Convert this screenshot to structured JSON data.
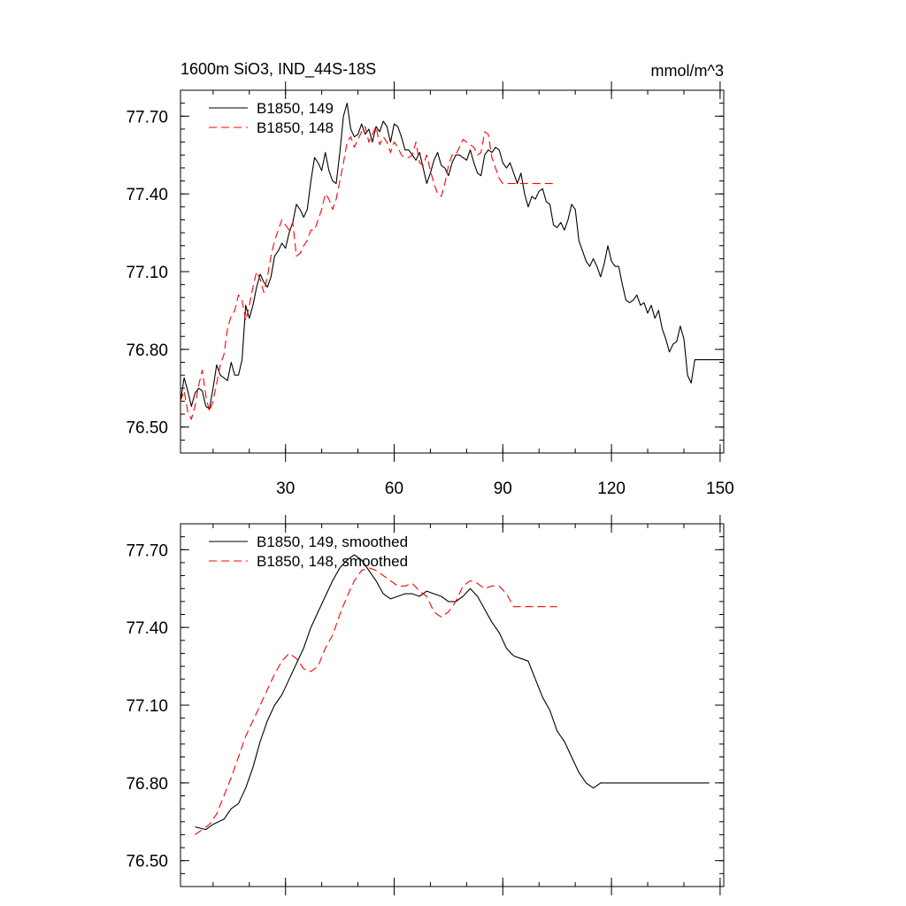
{
  "figure": {
    "title_left": "1600m SiO3, IND_44S-18S",
    "title_right": "mmol/m^3"
  },
  "chart_data": [
    {
      "type": "line",
      "xlim": [
        1,
        151
      ],
      "ylim": [
        76.4,
        77.8
      ],
      "yticks": [
        76.5,
        76.8,
        77.1,
        77.4,
        77.7
      ],
      "ytick_labels": [
        "76.50",
        "76.80",
        "77.10",
        "77.40",
        "77.70"
      ],
      "xticks": [
        30,
        60,
        90,
        120,
        150
      ],
      "xtick_labels": [
        "30",
        "60",
        "90",
        "120",
        "150"
      ],
      "grid": false,
      "legend_position": "top-left",
      "series": [
        {
          "name": "B1850, 149",
          "color": "#000000",
          "dash": "solid",
          "x": [
            1,
            2,
            3,
            4,
            5,
            6,
            7,
            8,
            9,
            10,
            11,
            12,
            13,
            14,
            15,
            16,
            17,
            18,
            19,
            20,
            21,
            22,
            23,
            24,
            25,
            26,
            27,
            28,
            29,
            30,
            31,
            32,
            33,
            34,
            35,
            36,
            37,
            38,
            39,
            40,
            41,
            42,
            43,
            44,
            45,
            46,
            47,
            48,
            49,
            50,
            51,
            52,
            53,
            54,
            55,
            56,
            57,
            58,
            59,
            60,
            61,
            62,
            63,
            64,
            65,
            66,
            67,
            68,
            69,
            70,
            71,
            72,
            73,
            74,
            75,
            76,
            77,
            78,
            79,
            80,
            81,
            82,
            83,
            84,
            85,
            86,
            87,
            88,
            89,
            90,
            91,
            92,
            93,
            94,
            95,
            96,
            97,
            98,
            99,
            100,
            101,
            102,
            103,
            104,
            105,
            106,
            107,
            108,
            109,
            110,
            111,
            112,
            113,
            114,
            115,
            116,
            117,
            118,
            119,
            120,
            121,
            122,
            123,
            124,
            125,
            126,
            127,
            128,
            129,
            130,
            131,
            132,
            133,
            134,
            135,
            136,
            137,
            138,
            139,
            140,
            141,
            142,
            143,
            144,
            145,
            146,
            147,
            148,
            149,
            150,
            151
          ],
          "values": [
            76.6,
            76.69,
            76.64,
            76.58,
            76.63,
            76.65,
            76.64,
            76.58,
            76.57,
            76.65,
            76.74,
            76.7,
            76.69,
            76.68,
            76.75,
            76.7,
            76.7,
            76.76,
            76.97,
            76.92,
            76.97,
            77.04,
            77.09,
            77.06,
            77.04,
            77.08,
            77.16,
            77.18,
            77.21,
            77.19,
            77.25,
            77.29,
            77.36,
            77.34,
            77.31,
            77.34,
            77.45,
            77.54,
            77.52,
            77.49,
            77.56,
            77.49,
            77.45,
            77.44,
            77.56,
            77.7,
            77.75,
            77.65,
            77.62,
            77.63,
            77.67,
            77.63,
            77.65,
            77.6,
            77.66,
            77.64,
            77.68,
            77.66,
            77.6,
            77.67,
            77.66,
            77.62,
            77.57,
            77.57,
            77.55,
            77.53,
            77.56,
            77.5,
            77.44,
            77.48,
            77.53,
            77.56,
            77.51,
            77.5,
            77.47,
            77.52,
            77.55,
            77.55,
            77.54,
            77.53,
            77.57,
            77.52,
            77.48,
            77.47,
            77.55,
            77.57,
            77.56,
            77.58,
            77.57,
            77.52,
            77.5,
            77.52,
            77.48,
            77.44,
            77.48,
            77.4,
            77.35,
            77.39,
            77.38,
            77.41,
            77.42,
            77.37,
            77.36,
            77.28,
            77.27,
            77.29,
            77.26,
            77.3,
            77.36,
            77.34,
            77.22,
            77.18,
            77.14,
            77.12,
            77.15,
            77.12,
            77.08,
            77.13,
            77.2,
            77.14,
            77.12,
            77.12,
            77.05,
            76.99,
            76.98,
            76.99,
            77.01,
            76.97,
            76.98,
            76.94,
            76.97,
            76.92,
            76.95,
            76.88,
            76.84,
            76.79,
            76.82,
            76.83,
            76.89,
            76.84,
            76.7,
            76.67,
            76.76,
            76.76,
            76.76,
            76.76,
            76.76,
            76.76,
            76.76,
            76.76,
            76.76
          ]
        },
        {
          "name": "B1850, 148",
          "color": "#ff0000",
          "dash": "dashed",
          "x": [
            1,
            2,
            3,
            4,
            5,
            6,
            7,
            8,
            9,
            10,
            11,
            12,
            13,
            14,
            15,
            16,
            17,
            18,
            19,
            20,
            21,
            22,
            23,
            24,
            25,
            26,
            27,
            28,
            29,
            30,
            31,
            32,
            33,
            34,
            35,
            36,
            37,
            38,
            39,
            40,
            41,
            42,
            43,
            44,
            45,
            46,
            47,
            48,
            49,
            50,
            51,
            52,
            53,
            54,
            55,
            56,
            57,
            58,
            59,
            60,
            61,
            62,
            63,
            64,
            65,
            66,
            67,
            68,
            69,
            70,
            71,
            72,
            73,
            74,
            75,
            76,
            77,
            78,
            79,
            80,
            81,
            82,
            83,
            84,
            85,
            86,
            87,
            88,
            89,
            90,
            91,
            92,
            93,
            94,
            95,
            96,
            97,
            98,
            99,
            100,
            101,
            102,
            103,
            104,
            105
          ],
          "values": [
            76.6,
            76.64,
            76.56,
            76.53,
            76.58,
            76.66,
            76.72,
            76.62,
            76.56,
            76.6,
            76.67,
            76.74,
            76.78,
            76.88,
            76.93,
            76.95,
            77.01,
            76.99,
            76.91,
            76.97,
            77.04,
            77.1,
            77.07,
            77.02,
            77.08,
            77.16,
            77.22,
            77.26,
            77.3,
            77.28,
            77.26,
            77.29,
            77.16,
            77.17,
            77.2,
            77.22,
            77.26,
            77.26,
            77.3,
            77.34,
            77.4,
            77.38,
            77.34,
            77.38,
            77.45,
            77.52,
            77.6,
            77.62,
            77.58,
            77.61,
            77.64,
            77.66,
            77.6,
            77.63,
            77.66,
            77.59,
            77.62,
            77.6,
            77.56,
            77.6,
            77.58,
            77.55,
            77.54,
            77.54,
            77.55,
            77.6,
            77.52,
            77.51,
            77.55,
            77.49,
            77.44,
            77.4,
            77.39,
            77.44,
            77.51,
            77.55,
            77.55,
            77.58,
            77.61,
            77.6,
            77.59,
            77.58,
            77.55,
            77.56,
            77.64,
            77.63,
            77.54,
            77.5,
            77.46,
            77.44,
            77.44,
            77.44,
            77.44,
            77.44,
            77.44,
            77.44,
            77.44,
            77.44,
            77.44,
            77.44,
            77.44,
            77.44,
            77.44,
            77.44,
            77.44
          ]
        }
      ]
    },
    {
      "type": "line",
      "xlim": [
        1,
        151
      ],
      "ylim": [
        76.4,
        77.8
      ],
      "yticks": [
        76.5,
        76.8,
        77.1,
        77.4,
        77.7
      ],
      "ytick_labels": [
        "76.50",
        "76.80",
        "77.10",
        "77.40",
        "77.70"
      ],
      "xticks": [
        30,
        60,
        90,
        120,
        150
      ],
      "grid": false,
      "legend_position": "top-left",
      "series": [
        {
          "name": "B1850, 149, smoothed",
          "color": "#000000",
          "dash": "solid",
          "x": [
            5,
            8,
            10,
            13,
            15,
            17,
            19,
            21,
            23,
            25,
            27,
            29,
            31,
            33,
            35,
            37,
            39,
            41,
            43,
            45,
            47,
            49,
            51,
            53,
            55,
            57,
            59,
            61,
            63,
            65,
            67,
            69,
            71,
            73,
            75,
            77,
            79,
            81,
            83,
            85,
            87,
            89,
            91,
            93,
            95,
            97,
            99,
            101,
            103,
            105,
            107,
            109,
            111,
            113,
            115,
            117,
            119,
            121,
            123,
            125,
            127,
            129,
            131,
            133,
            135,
            137,
            139,
            141,
            143,
            145,
            147
          ],
          "values": [
            76.63,
            76.62,
            76.64,
            76.66,
            76.7,
            76.72,
            76.78,
            76.86,
            76.96,
            77.04,
            77.1,
            77.14,
            77.2,
            77.26,
            77.32,
            77.4,
            77.46,
            77.52,
            77.58,
            77.63,
            77.66,
            77.68,
            77.66,
            77.62,
            77.58,
            77.53,
            77.51,
            77.52,
            77.53,
            77.53,
            77.52,
            77.54,
            77.53,
            77.52,
            77.5,
            77.5,
            77.52,
            77.55,
            77.52,
            77.47,
            77.42,
            77.38,
            77.32,
            77.29,
            77.28,
            77.27,
            77.2,
            77.13,
            77.08,
            77.0,
            76.96,
            76.9,
            76.84,
            76.8,
            76.78,
            76.8,
            76.8,
            76.8,
            76.8,
            76.8,
            76.8,
            76.8,
            76.8,
            76.8,
            76.8,
            76.8,
            76.8,
            76.8,
            76.8,
            76.8,
            76.8
          ]
        },
        {
          "name": "B1850, 148, smoothed",
          "color": "#ff0000",
          "dash": "dashed",
          "x": [
            5,
            7,
            9,
            11,
            13,
            15,
            17,
            19,
            21,
            23,
            25,
            27,
            29,
            31,
            33,
            35,
            37,
            39,
            41,
            43,
            45,
            47,
            49,
            51,
            53,
            55,
            57,
            59,
            61,
            63,
            65,
            67,
            69,
            71,
            73,
            75,
            77,
            79,
            81,
            83,
            85,
            87,
            89,
            91,
            93,
            95,
            97,
            99,
            101,
            103,
            105
          ],
          "values": [
            76.6,
            76.62,
            76.64,
            76.68,
            76.75,
            76.82,
            76.9,
            76.98,
            77.04,
            77.1,
            77.16,
            77.22,
            77.27,
            77.3,
            77.28,
            77.24,
            77.23,
            77.25,
            77.32,
            77.37,
            77.45,
            77.52,
            77.58,
            77.62,
            77.63,
            77.62,
            77.6,
            77.58,
            77.56,
            77.56,
            77.57,
            77.54,
            77.52,
            77.46,
            77.44,
            77.46,
            77.5,
            77.56,
            77.58,
            77.57,
            77.55,
            77.56,
            77.56,
            77.53,
            77.48,
            77.48,
            77.48,
            77.48,
            77.48,
            77.48,
            77.48
          ]
        }
      ]
    }
  ]
}
